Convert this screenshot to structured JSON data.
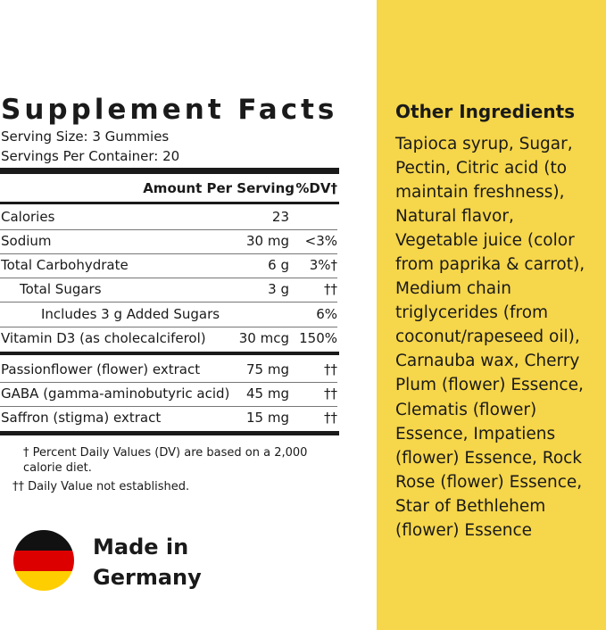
{
  "facts": {
    "title": "Supplement Facts",
    "serving_size": "Serving Size: 3 Gummies",
    "servings_per_container": "Servings Per Container: 20",
    "header": {
      "amount": "Amount Per Serving",
      "dv": "%DV†"
    },
    "rows": [
      {
        "name": "Calories",
        "amount": "23"
      },
      {
        "name": "Sodium",
        "amount": "30 mg",
        "dv": "<3%"
      },
      {
        "name": "Total Carbohydrate",
        "amount": "6 g",
        "dv": "3%†"
      },
      {
        "name": "Total Sugars",
        "amount": "3 g",
        "dv": "††"
      },
      {
        "name": "Includes 3 g Added Sugars",
        "dv": "6%"
      },
      {
        "name": "Vitamin D3 (as cholecalciferol)",
        "amount": "30 mcg",
        "dv": "150%"
      },
      {
        "name": "Passionflower (flower) extract",
        "amount": "75 mg",
        "dv": "††"
      },
      {
        "name": "GABA (gamma-aminobutyric acid)",
        "amount": "45 mg",
        "dv": "††"
      },
      {
        "name": "Saffron (stigma) extract",
        "amount": "15 mg",
        "dv": "††"
      }
    ],
    "footnotes": [
      "† Percent Daily Values (DV) are based on a 2,000 calorie diet.",
      "†† Daily Value not established."
    ]
  },
  "origin": {
    "line1": "Made in",
    "line2": "Germany"
  },
  "other_ingredients": {
    "title": "Other Ingredients",
    "lines": [
      "Tapioca syrup, Sugar,",
      "Pectin, Citric acid (to",
      "maintain freshness),",
      "Natural flavor,",
      "Vegetable juice (color",
      "from paprika & carrot),",
      "Medium chain",
      "triglycerides (from",
      "coconut/rapeseed oil),",
      "Carnauba wax, Cherry",
      "Plum (flower) Essence,",
      "Clematis (flower)",
      "Essence, Impatiens",
      "(flower) Essence, Rock",
      "Rose (flower) Essence,",
      "Star of Bethlehem",
      "(flower) Essence"
    ]
  }
}
